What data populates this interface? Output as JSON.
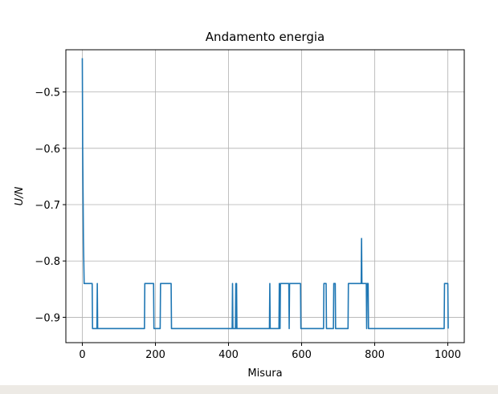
{
  "chart_data": {
    "type": "line",
    "title": "Andamento energia",
    "xlabel": "Misura",
    "ylabel": "U/N",
    "xlim": [
      -45,
      1045
    ],
    "ylim": [
      -0.945,
      -0.425
    ],
    "xticks": [
      0,
      200,
      400,
      600,
      800,
      1000
    ],
    "xtick_labels": [
      "0",
      "200",
      "400",
      "600",
      "800",
      "1000"
    ],
    "yticks": [
      -0.9,
      -0.8,
      -0.7,
      -0.6,
      -0.5
    ],
    "ytick_labels": [
      "−0.9",
      "−0.8",
      "−0.7",
      "−0.6",
      "−0.5"
    ],
    "grid": true,
    "line_color": "#1f77b4",
    "series": [
      {
        "x": [
          0,
          1,
          2,
          3,
          4,
          5,
          6,
          7,
          8,
          27,
          28,
          30,
          40,
          41,
          42,
          170,
          171,
          195,
          196,
          213,
          214,
          243,
          244,
          410,
          411,
          412,
          419,
          420,
          421,
          422,
          423,
          512,
          513,
          514,
          538,
          539,
          541,
          542,
          543,
          550,
          551,
          565,
          566,
          567,
          568,
          597,
          598,
          660,
          661,
          667,
          668,
          687,
          688,
          692,
          693,
          727,
          728,
          763,
          764,
          765,
          766,
          777,
          778,
          779,
          782,
          783,
          784,
          990,
          991,
          1000,
          1001
        ],
        "y": [
          -0.44,
          -0.6,
          -0.68,
          -0.76,
          -0.8,
          -0.84,
          -0.84,
          -0.84,
          -0.84,
          -0.84,
          -0.92,
          -0.92,
          -0.92,
          -0.84,
          -0.92,
          -0.92,
          -0.84,
          -0.84,
          -0.92,
          -0.92,
          -0.84,
          -0.84,
          -0.92,
          -0.92,
          -0.84,
          -0.92,
          -0.92,
          -0.84,
          -0.92,
          -0.84,
          -0.92,
          -0.92,
          -0.84,
          -0.92,
          -0.92,
          -0.84,
          -0.92,
          -0.84,
          -0.84,
          -0.84,
          -0.84,
          -0.84,
          -0.92,
          -0.84,
          -0.84,
          -0.84,
          -0.92,
          -0.92,
          -0.84,
          -0.84,
          -0.92,
          -0.92,
          -0.84,
          -0.84,
          -0.92,
          -0.92,
          -0.84,
          -0.84,
          -0.76,
          -0.84,
          -0.84,
          -0.84,
          -0.92,
          -0.84,
          -0.84,
          -0.92,
          -0.92,
          -0.92,
          -0.84,
          -0.84,
          -0.92
        ]
      }
    ]
  }
}
